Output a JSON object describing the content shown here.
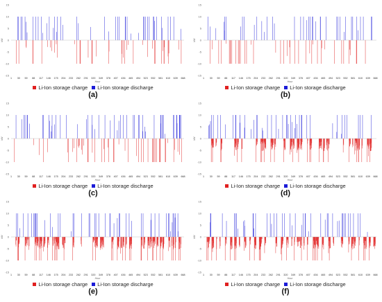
{
  "colors": {
    "charge": "#e02020",
    "discharge": "#1c1cd8",
    "axis": "#b0b0b0",
    "tick_text": "#666666"
  },
  "chart_data": [
    {
      "type": "bar",
      "panel": "(a)",
      "xlabel": "Hour",
      "ylabel": "kW",
      "xlim": [
        1,
        672
      ],
      "ylim": [
        -15,
        15
      ],
      "yticks": [
        "15",
        "10",
        "5",
        "0",
        "-5",
        "-10",
        "-15"
      ],
      "xticks": [
        "1",
        "30",
        "59",
        "88",
        "117",
        "146",
        "175",
        "204",
        "233",
        "262",
        "291",
        "320",
        "349",
        "378",
        "407",
        "436",
        "465",
        "494",
        "523",
        "552",
        "581",
        "610",
        "639",
        "668"
      ],
      "legend": [
        "Li-Ion storage charge",
        "Li-Ion storage discharge"
      ],
      "charge_peak": -10,
      "discharge_peak": 10,
      "charge_events": 48,
      "discharge_events": 50,
      "charge_profile": "spikes",
      "x": [],
      "charge_kW": [],
      "discharge_kW": []
    },
    {
      "type": "bar",
      "panel": "(b)",
      "xlabel": "Hour",
      "ylabel": "kW",
      "xlim": [
        1,
        672
      ],
      "ylim": [
        -15,
        15
      ],
      "yticks": [
        "15",
        "10",
        "5",
        "0",
        "-5",
        "-10",
        "-15"
      ],
      "xticks": [
        "1",
        "30",
        "59",
        "88",
        "117",
        "146",
        "175",
        "204",
        "233",
        "262",
        "291",
        "320",
        "349",
        "378",
        "407",
        "436",
        "465",
        "494",
        "523",
        "552",
        "581",
        "610",
        "639",
        "668"
      ],
      "legend": [
        "Li-Ion storage charge",
        "Li-Ion storage discharge"
      ],
      "charge_peak": -10,
      "discharge_peak": 10,
      "charge_events": 44,
      "discharge_events": 46,
      "charge_profile": "spikes",
      "x": [],
      "charge_kW": [],
      "discharge_kW": []
    },
    {
      "type": "bar",
      "panel": "(c)",
      "xlabel": "Hour",
      "ylabel": "kW",
      "xlim": [
        1,
        672
      ],
      "ylim": [
        -15,
        15
      ],
      "yticks": [
        "15",
        "10",
        "5",
        "0",
        "-5",
        "-10",
        "-15"
      ],
      "xticks": [
        "1",
        "30",
        "59",
        "88",
        "117",
        "146",
        "175",
        "204",
        "233",
        "262",
        "291",
        "320",
        "349",
        "378",
        "407",
        "436",
        "465",
        "494",
        "523",
        "552",
        "581",
        "610",
        "639",
        "668"
      ],
      "legend": [
        "Li-Ion storage charge",
        "Li-Ion storage discharge"
      ],
      "charge_peak": -10,
      "discharge_peak": 10,
      "charge_events": 54,
      "discharge_events": 60,
      "charge_profile": "spikes",
      "x": [],
      "charge_kW": [],
      "discharge_kW": []
    },
    {
      "type": "bar",
      "panel": "(d)",
      "xlabel": "Hour",
      "ylabel": "kW",
      "xlim": [
        1,
        672
      ],
      "ylim": [
        -15,
        15
      ],
      "yticks": [
        "15",
        "10",
        "5",
        "0",
        "-5",
        "-10",
        "-15"
      ],
      "xticks": [
        "1",
        "30",
        "59",
        "88",
        "117",
        "146",
        "175",
        "204",
        "233",
        "262",
        "291",
        "320",
        "349",
        "378",
        "407",
        "436",
        "465",
        "494",
        "523",
        "552",
        "581",
        "610",
        "639",
        "668"
      ],
      "legend": [
        "Li-Ion storage charge",
        "Li-Ion storage discharge"
      ],
      "charge_peak": -10,
      "discharge_peak": 10,
      "charge_events": 46,
      "discharge_events": 52,
      "charge_profile": "dense",
      "x": [],
      "charge_kW": [],
      "discharge_kW": []
    },
    {
      "type": "bar",
      "panel": "(e)",
      "xlabel": "Hour",
      "ylabel": "kW",
      "xlim": [
        1,
        672
      ],
      "ylim": [
        -15,
        15
      ],
      "yticks": [
        "15",
        "10",
        "5",
        "0",
        "-5",
        "-10",
        "-15"
      ],
      "xticks": [
        "1",
        "30",
        "59",
        "88",
        "117",
        "146",
        "175",
        "204",
        "233",
        "262",
        "291",
        "320",
        "349",
        "378",
        "407",
        "436",
        "465",
        "494",
        "523",
        "552",
        "581",
        "610",
        "639",
        "668"
      ],
      "legend": [
        "Li-Ion storage charge",
        "Li-Ion storage discharge"
      ],
      "charge_peak": -10,
      "discharge_peak": 10,
      "charge_events": 58,
      "discharge_events": 54,
      "charge_profile": "dense",
      "x": [],
      "charge_kW": [],
      "discharge_kW": []
    },
    {
      "type": "bar",
      "panel": "(f)",
      "xlabel": "Hour",
      "ylabel": "kW",
      "xlim": [
        1,
        672
      ],
      "ylim": [
        -15,
        15
      ],
      "yticks": [
        "15",
        "10",
        "5",
        "0",
        "-5",
        "-10",
        "-15"
      ],
      "xticks": [
        "1",
        "30",
        "59",
        "88",
        "117",
        "146",
        "175",
        "204",
        "233",
        "262",
        "291",
        "320",
        "349",
        "378",
        "407",
        "436",
        "465",
        "494",
        "523",
        "552",
        "581",
        "610",
        "639",
        "668"
      ],
      "legend": [
        "Li-Ion storage charge",
        "Li-Ion storage discharge"
      ],
      "charge_peak": -10,
      "discharge_peak": 10,
      "charge_events": 52,
      "discharge_events": 50,
      "charge_profile": "dense",
      "x": [],
      "charge_kW": [],
      "discharge_kW": []
    }
  ]
}
